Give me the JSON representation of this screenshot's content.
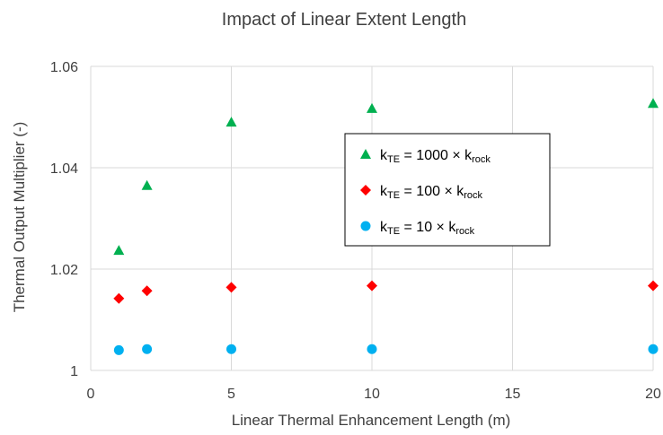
{
  "chart_data": {
    "type": "scatter",
    "title": "Impact of Linear Extent Length",
    "xlabel": "Linear Thermal Enhancement Length (m)",
    "ylabel": "Thermal Output Multiplier (-)",
    "xlim": [
      0,
      20
    ],
    "ylim": [
      1.0,
      1.06
    ],
    "xticks": [
      0,
      5,
      10,
      15,
      20
    ],
    "yticks": [
      1,
      1.02,
      1.04,
      1.06
    ],
    "ytick_labels": [
      "1",
      "1.02",
      "1.04",
      "1.06"
    ],
    "grid": true,
    "legend_position": "center-right",
    "series": [
      {
        "name": "kTE = 1000 × krock",
        "legend": {
          "main1": "k",
          "sub1": "TE",
          "main2": " = 1000 × k",
          "sub2": "rock"
        },
        "marker": "triangle",
        "color": "#00B050",
        "x": [
          1,
          2,
          5,
          10,
          20
        ],
        "y": [
          1.0237,
          1.0365,
          1.049,
          1.0517,
          1.0527
        ]
      },
      {
        "name": "kTE = 100 × krock",
        "legend": {
          "main1": "k",
          "sub1": "TE",
          "main2": " = 100 × k",
          "sub2": "rock"
        },
        "marker": "diamond",
        "color": "#FF0000",
        "x": [
          1,
          2,
          5,
          10,
          20
        ],
        "y": [
          1.0142,
          1.0157,
          1.0164,
          1.0167,
          1.0167
        ]
      },
      {
        "name": "kTE = 10 × krock",
        "legend": {
          "main1": "k",
          "sub1": "TE",
          "main2": " = 10 × k",
          "sub2": "rock"
        },
        "marker": "circle",
        "color": "#00B0F0",
        "x": [
          1,
          2,
          5,
          10,
          20
        ],
        "y": [
          1.004,
          1.0042,
          1.0042,
          1.0042,
          1.0042
        ]
      }
    ]
  }
}
